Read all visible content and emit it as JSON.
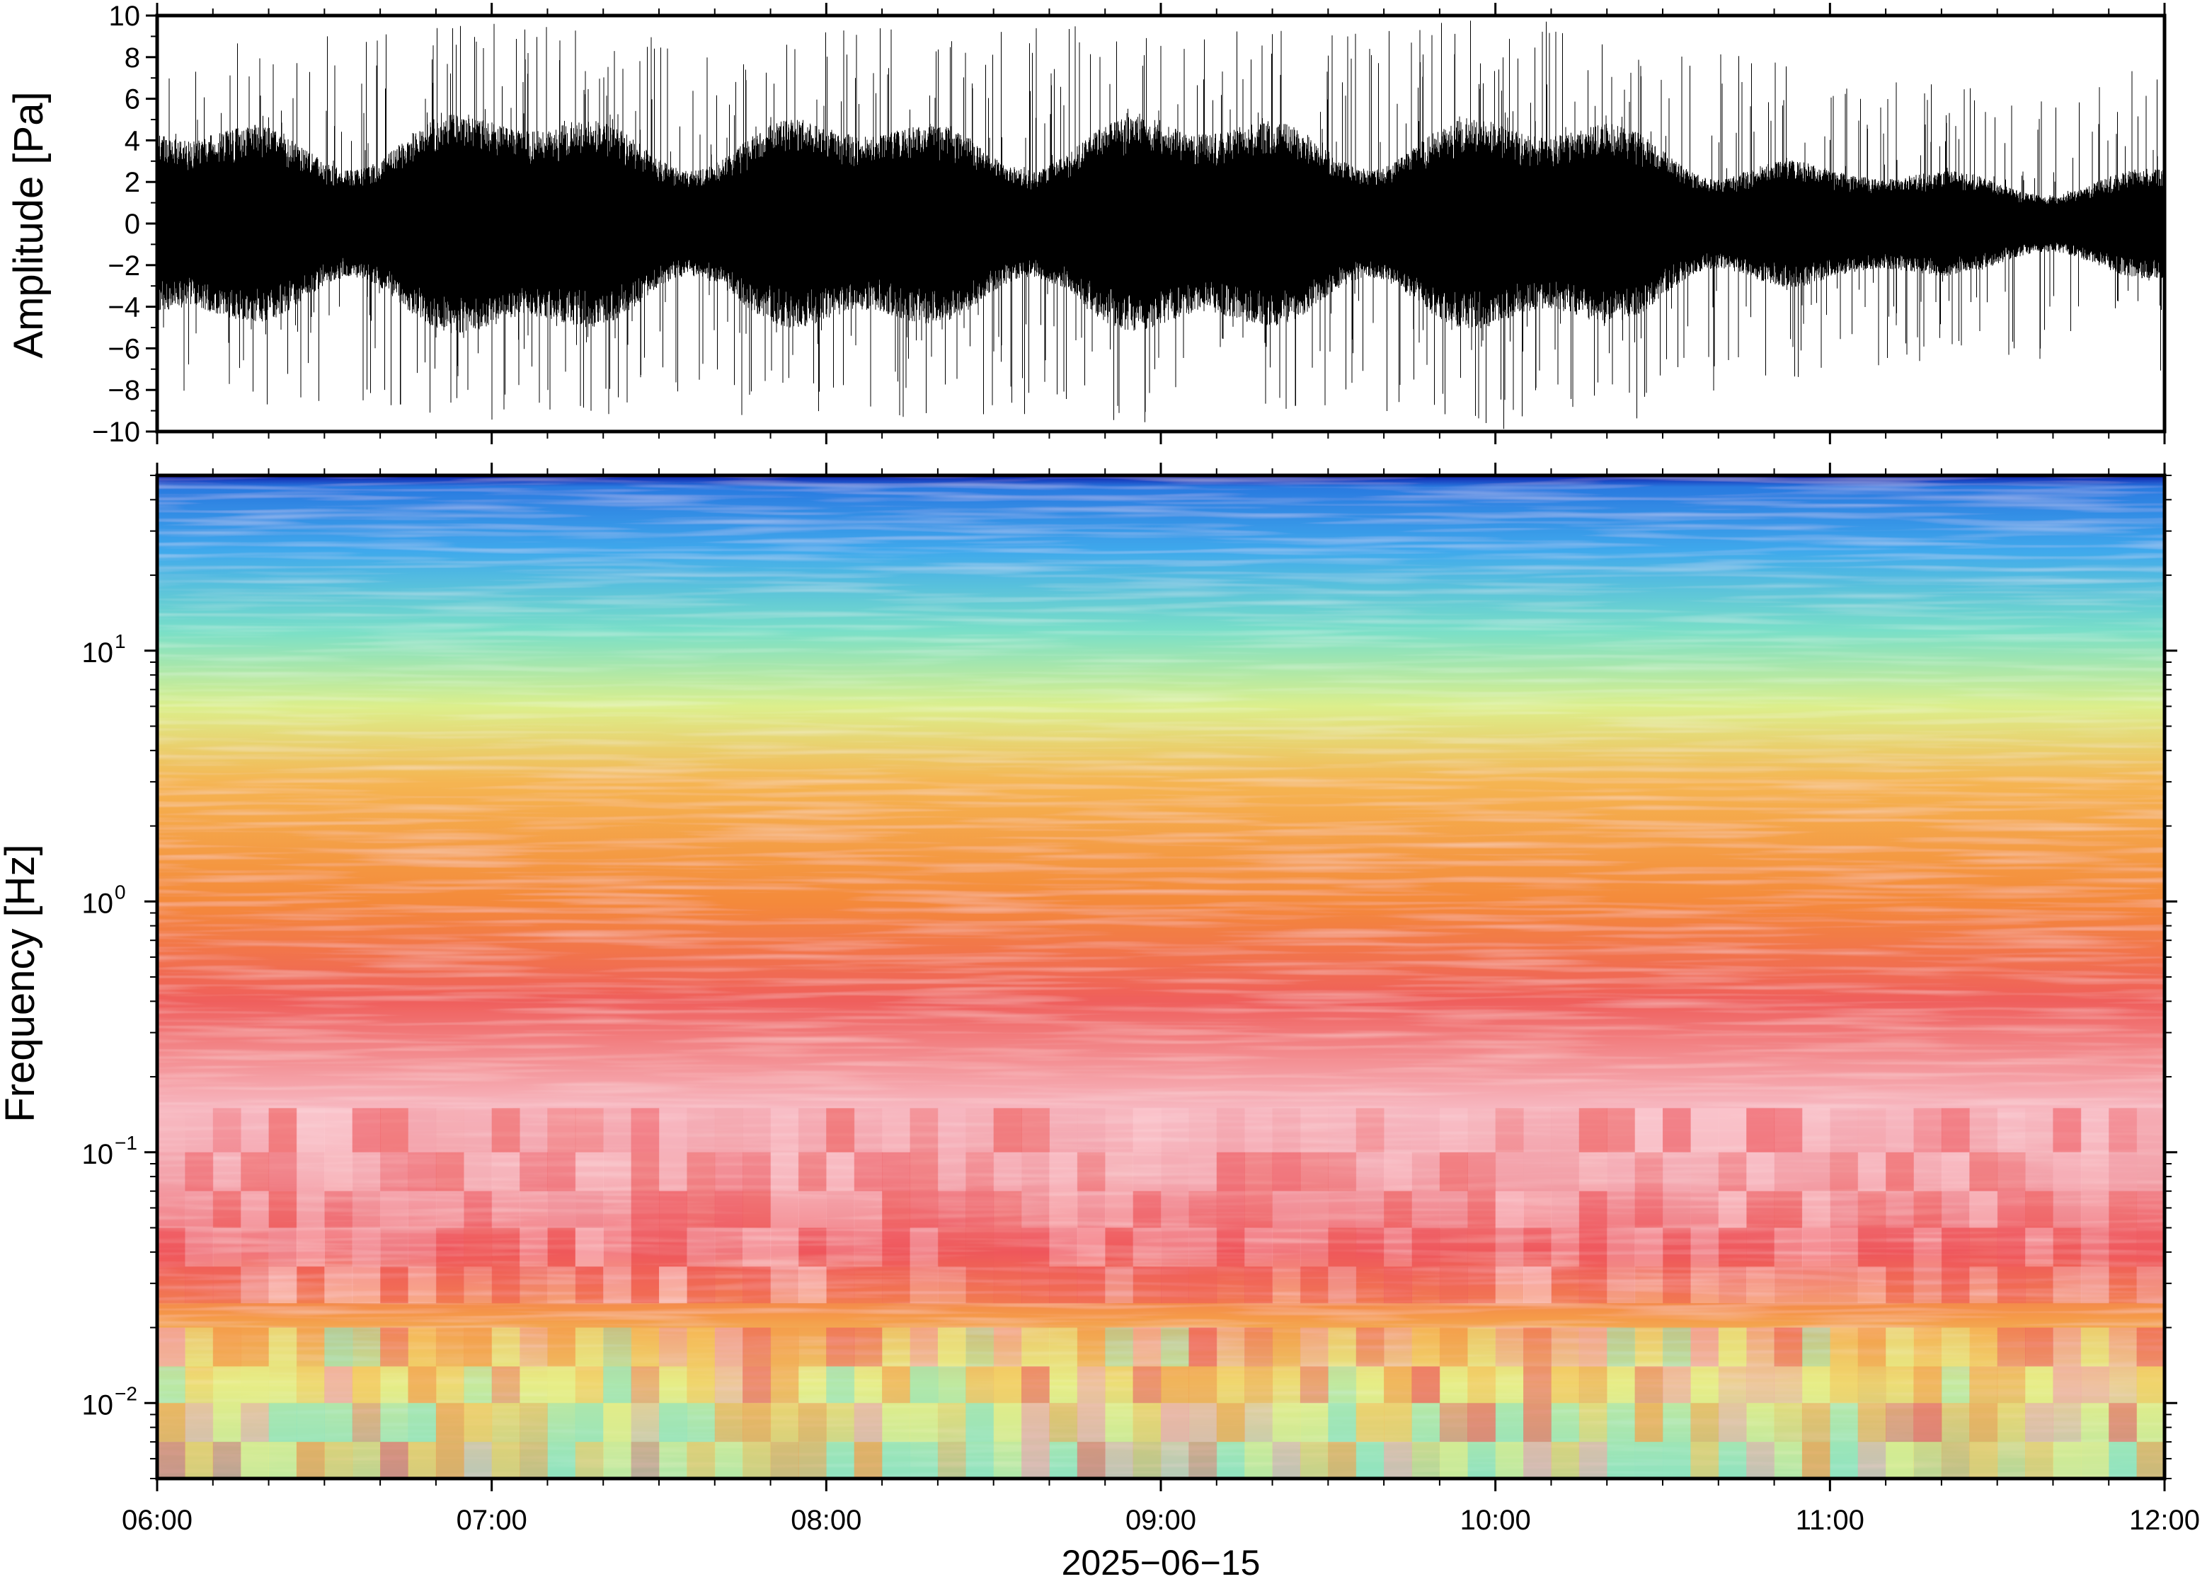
{
  "chart_data": [
    {
      "type": "line",
      "panel": "waveform",
      "ylabel": "Amplitude [Pa]",
      "ylim": [
        -10,
        10
      ],
      "yticks": [
        "10",
        "8",
        "6",
        "4",
        "2",
        "0",
        "−2",
        "−4",
        "−6",
        "−8",
        "−10"
      ],
      "ytick_values": [
        10,
        8,
        6,
        4,
        2,
        0,
        -2,
        -4,
        -6,
        -8,
        -10
      ],
      "xlim_hours": [
        6,
        12
      ],
      "series": [
        {
          "color": "#000000",
          "envelope_description": "dense infrasound trace",
          "hours": [
            6.0,
            6.5,
            7.0,
            7.5,
            8.0,
            8.5,
            9.0,
            9.5,
            10.0,
            10.5,
            11.0,
            11.5,
            12.0
          ],
          "typical_abs_amplitude": [
            4.0,
            3.8,
            4.5,
            3.8,
            4.2,
            3.8,
            4.3,
            3.9,
            4.2,
            3.8,
            2.2,
            2.0,
            2.2
          ],
          "peak_abs_amplitude": [
            8.5,
            9.0,
            9.8,
            9.0,
            9.5,
            9.2,
            10.0,
            9.2,
            10.0,
            9.3,
            7.0,
            6.5,
            8.0
          ]
        }
      ]
    },
    {
      "type": "heatmap",
      "panel": "spectrogram",
      "ylabel": "Frequency [Hz]",
      "yscale": "log",
      "ylim": [
        0.005,
        50
      ],
      "yticks": [
        {
          "value": 10,
          "base": "10",
          "exp": "1"
        },
        {
          "value": 1,
          "base": "10",
          "exp": "0"
        },
        {
          "value": 0.1,
          "base": "10",
          "exp": "−1"
        },
        {
          "value": 0.01,
          "base": "10",
          "exp": "−2"
        }
      ],
      "xlabel": "2025−06−15",
      "xticks": [
        "06:00",
        "07:00",
        "08:00",
        "09:00",
        "10:00",
        "11:00",
        "12:00"
      ],
      "xtick_hours": [
        6,
        7,
        8,
        9,
        10,
        11,
        12
      ],
      "colormap": [
        "#1a1ac8",
        "#2f8ae6",
        "#4fc2e8",
        "#7ee3c4",
        "#e6f08a",
        "#f7c35a",
        "#f58f3e",
        "#ef5a58",
        "#f7b8c0"
      ],
      "band_profile": [
        {
          "freq_hz": 50,
          "color": "#0d1aa8"
        },
        {
          "freq_hz": 45,
          "color": "#2a7ae0"
        },
        {
          "freq_hz": 25,
          "color": "#3fa9ec"
        },
        {
          "freq_hz": 12,
          "color": "#79dfc8"
        },
        {
          "freq_hz": 6,
          "color": "#dcef8c"
        },
        {
          "freq_hz": 3,
          "color": "#f5b552"
        },
        {
          "freq_hz": 1,
          "color": "#f48a3a"
        },
        {
          "freq_hz": 0.4,
          "color": "#ef5f5c"
        },
        {
          "freq_hz": 0.15,
          "color": "#f7b7c0"
        },
        {
          "freq_hz": 0.08,
          "color": "#f3a2aa"
        },
        {
          "freq_hz": 0.04,
          "color": "#ef575c"
        },
        {
          "freq_hz": 0.022,
          "color": "#f59a48"
        },
        {
          "freq_hz": 0.012,
          "color": "#e7ed86"
        },
        {
          "freq_hz": 0.005,
          "color": "#8fe3c0"
        }
      ]
    }
  ]
}
